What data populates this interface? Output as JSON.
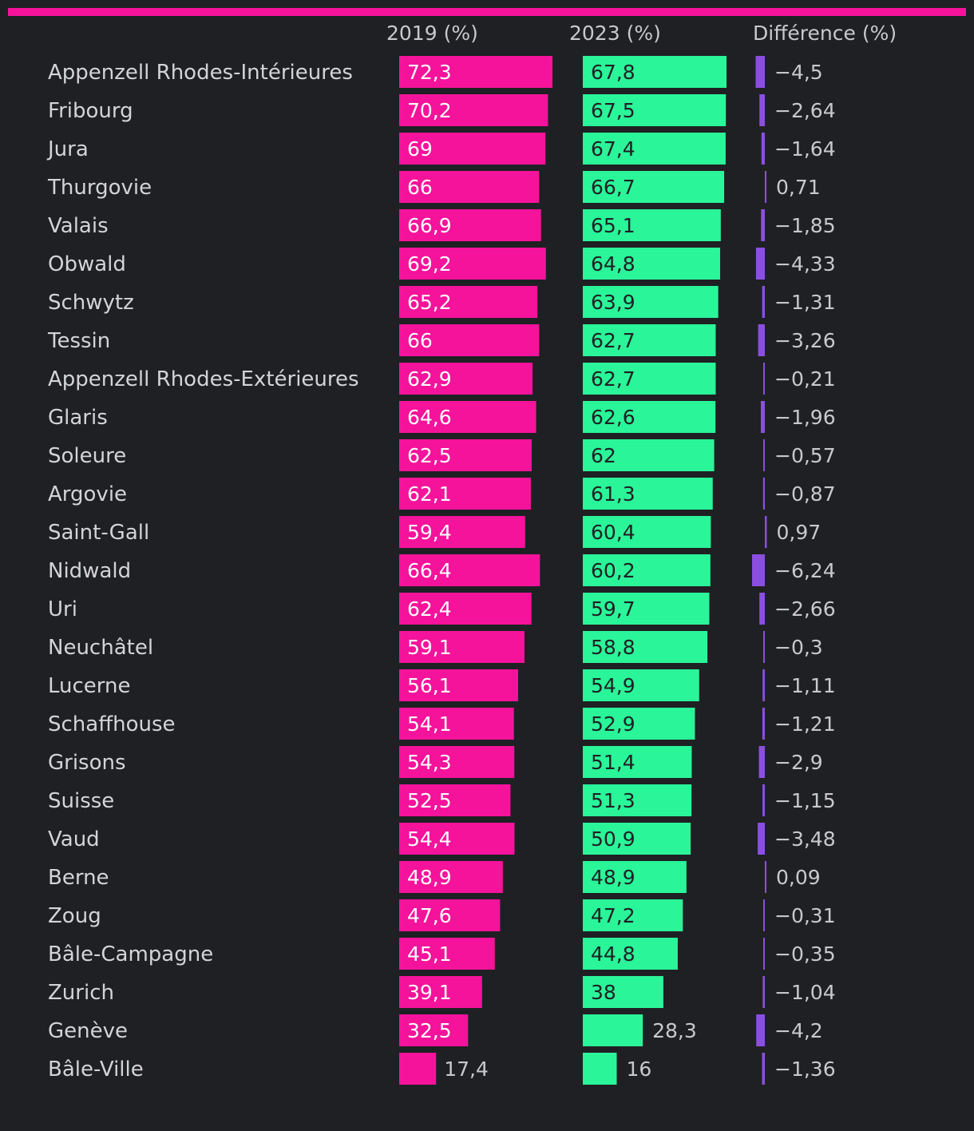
{
  "colors": {
    "background": "#1f2023",
    "accent_bar": "#f5139b",
    "series_2019": "#f5139b",
    "series_2023": "#2af599",
    "series_diff": "#8a4fe0"
  },
  "chart_data": {
    "type": "bar",
    "orientation": "horizontal",
    "title": "",
    "columns": [
      "2019 (%)",
      "2023 (%)",
      "Différence (%)"
    ],
    "categories": [
      "Appenzell Rhodes-Intérieures",
      "Fribourg",
      "Jura",
      "Thurgovie",
      "Valais",
      "Obwald",
      "Schwytz",
      "Tessin",
      "Appenzell Rhodes-Extérieures",
      "Glaris",
      "Soleure",
      "Argovie",
      "Saint-Gall",
      "Nidwald",
      "Uri",
      "Neuchâtel",
      "Lucerne",
      "Schaffhouse",
      "Grisons",
      "Suisse",
      "Vaud",
      "Berne",
      "Zoug",
      "Bâle-Campagne",
      "Zurich",
      "Genève",
      "Bâle-Ville"
    ],
    "series": [
      {
        "name": "2019 (%)",
        "values": [
          72.3,
          70.2,
          69,
          66,
          66.9,
          69.2,
          65.2,
          66,
          62.9,
          64.6,
          62.5,
          62.1,
          59.4,
          66.4,
          62.4,
          59.1,
          56.1,
          54.1,
          54.3,
          52.5,
          54.4,
          48.9,
          47.6,
          45.1,
          39.1,
          32.5,
          17.4
        ],
        "labels": [
          "72,3",
          "70,2",
          "69",
          "66",
          "66,9",
          "69,2",
          "65,2",
          "66",
          "62,9",
          "64,6",
          "62,5",
          "62,1",
          "59,4",
          "66,4",
          "62,4",
          "59,1",
          "56,1",
          "54,1",
          "54,3",
          "52,5",
          "54,4",
          "48,9",
          "47,6",
          "45,1",
          "39,1",
          "32,5",
          "17,4"
        ]
      },
      {
        "name": "2023 (%)",
        "values": [
          67.8,
          67.5,
          67.4,
          66.7,
          65.1,
          64.8,
          63.9,
          62.7,
          62.7,
          62.6,
          62,
          61.3,
          60.4,
          60.2,
          59.7,
          58.8,
          54.9,
          52.9,
          51.4,
          51.3,
          50.9,
          48.9,
          47.2,
          44.8,
          38,
          28.3,
          16
        ],
        "labels": [
          "67,8",
          "67,5",
          "67,4",
          "66,7",
          "65,1",
          "64,8",
          "63,9",
          "62,7",
          "62,7",
          "62,6",
          "62",
          "61,3",
          "60,4",
          "60,2",
          "59,7",
          "58,8",
          "54,9",
          "52,9",
          "51,4",
          "51,3",
          "50,9",
          "48,9",
          "47,2",
          "44,8",
          "38",
          "28,3",
          "16"
        ]
      },
      {
        "name": "Différence (%)",
        "values": [
          -4.5,
          -2.64,
          -1.64,
          0.71,
          -1.85,
          -4.33,
          -1.31,
          -3.26,
          -0.21,
          -1.96,
          -0.57,
          -0.87,
          0.97,
          -6.24,
          -2.66,
          -0.3,
          -1.11,
          -1.21,
          -2.9,
          -1.15,
          -3.48,
          0.09,
          -0.31,
          -0.35,
          -1.04,
          -4.2,
          -1.36
        ],
        "labels": [
          "−4,5",
          "−2,64",
          "−1,64",
          "0,71",
          "−1,85",
          "−4,33",
          "−1,31",
          "−3,26",
          "−0,21",
          "−1,96",
          "−0,57",
          "−0,87",
          "0,97",
          "−6,24",
          "−2,66",
          "−0,3",
          "−1,11",
          "−1,21",
          "−2,9",
          "−1,15",
          "−3,48",
          "0,09",
          "−0,31",
          "−0,35",
          "−1,04",
          "−4,2",
          "−1,36"
        ]
      }
    ]
  }
}
